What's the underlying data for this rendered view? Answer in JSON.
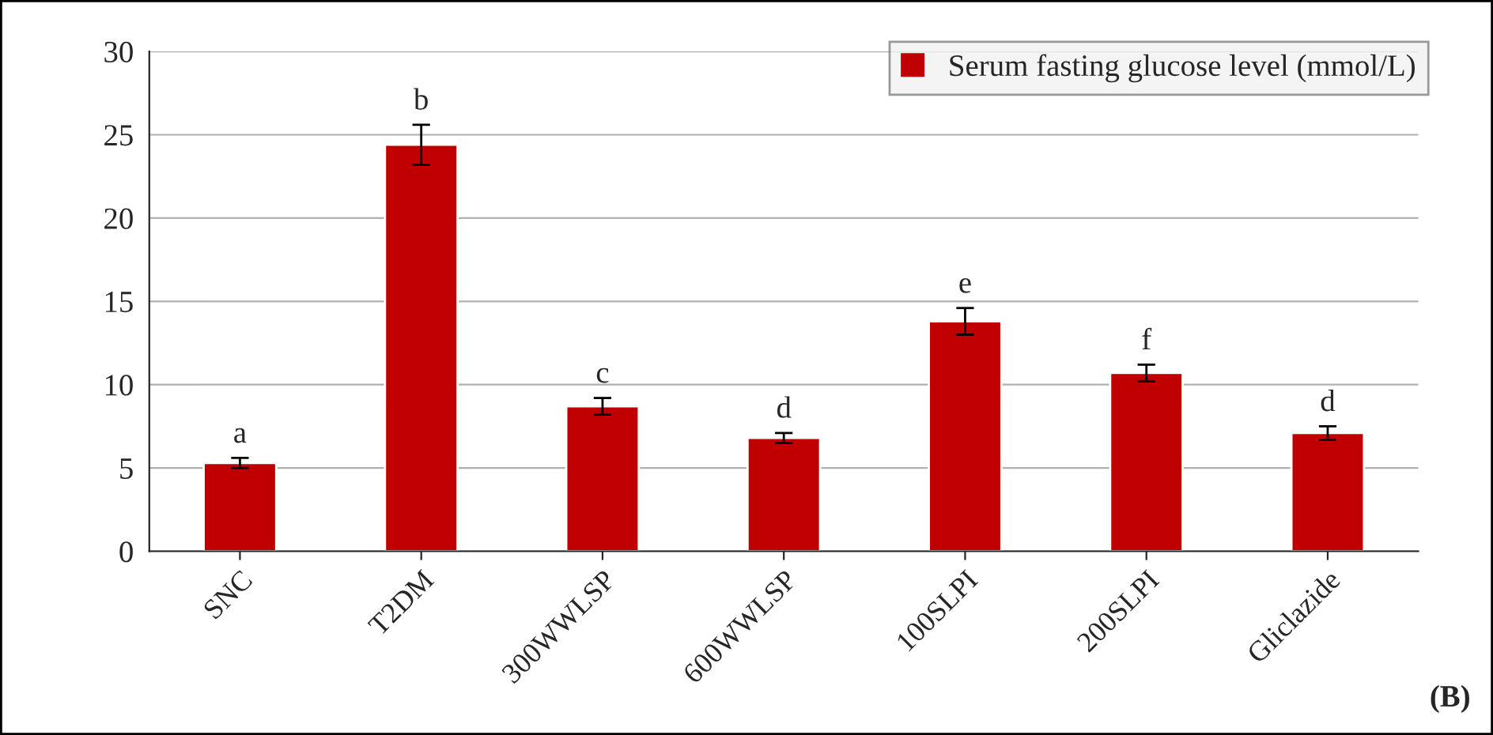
{
  "chart_data": {
    "type": "bar",
    "categories": [
      "SNC",
      "T2DM",
      "300WWLSP",
      "600WWLSP",
      "100SLPI",
      "200SLPI",
      "Gliclazide"
    ],
    "series": [
      {
        "name": "Serum fasting glucose level (mmol/L)",
        "color": "#c00000",
        "values": [
          5.3,
          24.4,
          8.7,
          6.8,
          13.8,
          10.7,
          7.1
        ],
        "errors": [
          0.3,
          1.2,
          0.5,
          0.3,
          0.8,
          0.5,
          0.4
        ]
      }
    ],
    "ylim": [
      0,
      30
    ],
    "yticks": [
      0,
      5,
      10,
      15,
      20,
      25,
      30
    ],
    "grid": "y",
    "legend": "top right",
    "annotations": [
      {
        "text": "a",
        "x": "SNC",
        "y": 5.6
      },
      {
        "text": "b",
        "x": "T2DM",
        "y": 25.6
      },
      {
        "text": "c",
        "x": "300WWLSP",
        "y": 9.2
      },
      {
        "text": "d",
        "x": "600WWLSP",
        "y": 7.1
      },
      {
        "text": "e",
        "x": "100SLPI",
        "y": 14.6
      },
      {
        "text": "f",
        "x": "200SLPI",
        "y": 11.2
      },
      {
        "text": "d",
        "x": "Gliclazide",
        "y": 7.5
      },
      "(B)"
    ]
  }
}
